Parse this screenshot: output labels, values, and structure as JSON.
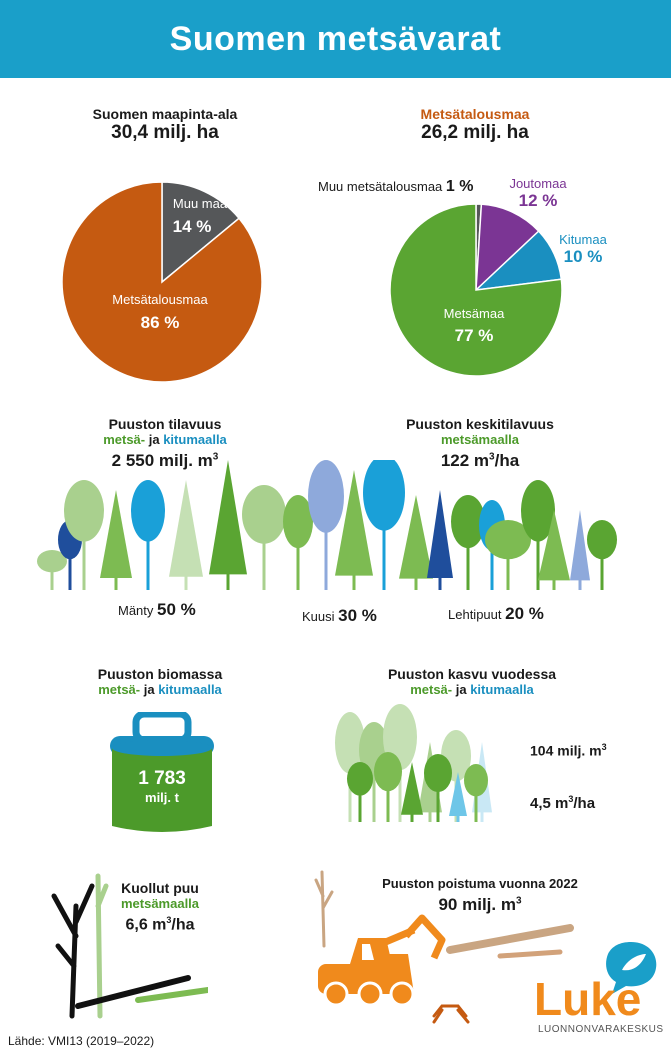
{
  "header": {
    "title": "Suomen metsävarat"
  },
  "land_area": {
    "title": "Suomen maapinta-ala",
    "value": "30,4 milj. ha",
    "slices": [
      {
        "label": "Muu maa",
        "percent_label": "14 %",
        "value": 14,
        "color": "#555759"
      },
      {
        "label": "Metsätalousmaa",
        "percent_label": "86 %",
        "value": 86,
        "color": "#c55a11"
      }
    ]
  },
  "forestry_land": {
    "title": "Metsätalousmaa",
    "value": "26,2 milj. ha",
    "slices": [
      {
        "label": "Muu metsätalousmaa",
        "percent_label": "1 %",
        "value": 1,
        "color": "#555759"
      },
      {
        "label": "Joutomaa",
        "percent_label": "12 %",
        "value": 12,
        "color": "#7b3594"
      },
      {
        "label": "Kitumaa",
        "percent_label": "10 %",
        "value": 10,
        "color": "#1a8fc0"
      },
      {
        "label": "Metsämaa",
        "percent_label": "77 %",
        "value": 77,
        "color": "#5aa532"
      }
    ]
  },
  "volume": {
    "title": "Puuston tilavuus",
    "sub_green": "metsä-",
    "sub_mid": " ja ",
    "sub_blue": "kitumaalla",
    "value_num": "2 550 milj. m",
    "value_sup": "3"
  },
  "avg_volume": {
    "title": "Puuston keskitilavuus",
    "sub_green": "metsämaalla",
    "value_num": "122 m",
    "value_sup": "3",
    "value_tail": "/ha"
  },
  "species": [
    {
      "name": "Mänty",
      "percent": "50 %"
    },
    {
      "name": "Kuusi",
      "percent": "30 %"
    },
    {
      "name": "Lehtipuut",
      "percent": "20 %"
    }
  ],
  "biomass": {
    "title": "Puuston biomassa",
    "sub_green": "metsä-",
    "sub_mid": " ja ",
    "sub_blue": "kitumaalla",
    "value": "1 783",
    "unit": "milj. t"
  },
  "growth": {
    "title": "Puuston kasvu vuodessa",
    "sub_green": "metsä-",
    "sub_mid": " ja ",
    "sub_blue": "kitumaalla",
    "total_num": "104 milj. m",
    "total_sup": "3",
    "per_ha_num": "4,5 m",
    "per_ha_sup": "3",
    "per_ha_tail": "/ha"
  },
  "deadwood": {
    "title": "Kuollut puu",
    "sub_green": "metsämaalla",
    "value_num": "6,6 m",
    "value_sup": "3",
    "value_tail": "/ha"
  },
  "drain": {
    "title": "Puuston poistuma vuonna 2022",
    "value_num": "90 milj. m",
    "value_sup": "3"
  },
  "logo": {
    "name": "Luke",
    "subtitle": "LUONNONVARAKESKUS"
  },
  "source": "Lähde: VMI13 (2019–2022)",
  "colors": {
    "header": "#1a9fc9",
    "green": "#4c9a2a",
    "blue": "#1a8fc0",
    "orange": "#c55a11",
    "purple": "#7b3594",
    "logo_orange": "#f08a1c"
  }
}
